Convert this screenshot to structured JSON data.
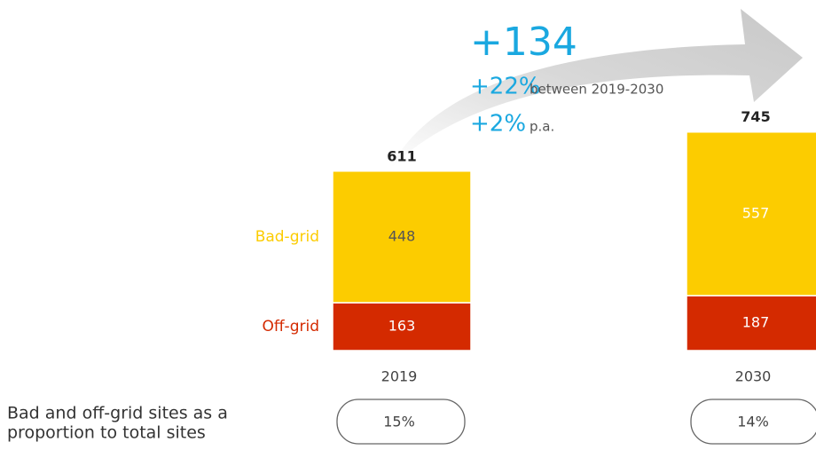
{
  "chart_data": {
    "type": "stacked_bar",
    "categories": [
      "2019",
      "2030"
    ],
    "series": [
      {
        "name": "Off-grid",
        "color": "#d42a00",
        "values": [
          163,
          187
        ]
      },
      {
        "name": "Bad-grid",
        "color": "#fccc00",
        "values": [
          448,
          557
        ]
      }
    ],
    "totals": [
      611,
      745
    ],
    "annotations": {
      "change": "+134",
      "pct_change": "+22%",
      "pct_change_note": "between 2019-2030",
      "annual": "+2%",
      "annual_note": "p.a."
    },
    "proportion": {
      "label_lines": [
        "Bad and off-grid sites as a",
        "proportion to total sites"
      ],
      "values": [
        15,
        14
      ],
      "value_labels": [
        "15%",
        "14%"
      ]
    }
  }
}
